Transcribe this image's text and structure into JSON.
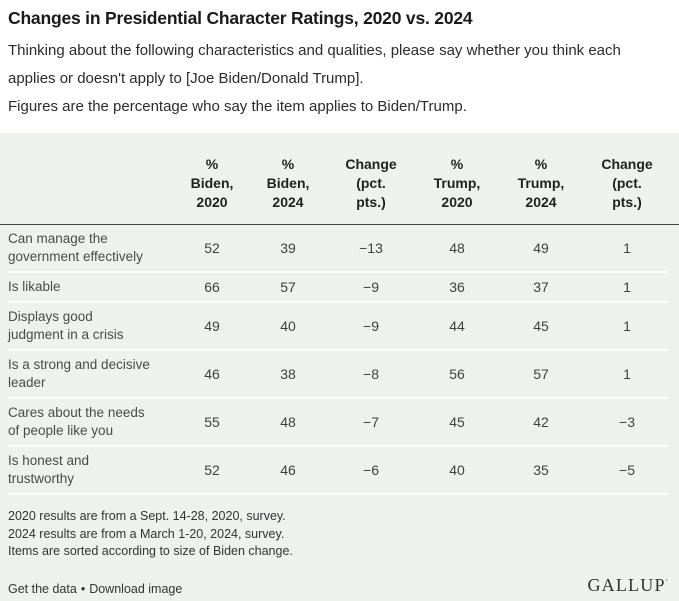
{
  "title": "Changes in Presidential Character Ratings, 2020 vs. 2024",
  "description": {
    "para1": "Thinking about the following characteristics and qualities, please say whether you think each applies or doesn't apply to [Joe Biden/Donald Trump].",
    "para2": "Figures are the percentage who say the item applies to Biden/Trump."
  },
  "table": {
    "headers": [
      "%\nBiden,\n2020",
      "%\nBiden,\n2024",
      "Change\n(pct.\npts.)",
      "%\nTrump,\n2020",
      "%\nTrump,\n2024",
      "Change\n(pct.\npts.)"
    ],
    "rows": [
      {
        "label": "Can manage the\ngovernment effectively",
        "biden2020": "52",
        "biden2024": "39",
        "biden_change": "−13",
        "trump2020": "48",
        "trump2024": "49",
        "trump_change": "1"
      },
      {
        "label": "Is likable",
        "biden2020": "66",
        "biden2024": "57",
        "biden_change": "−9",
        "trump2020": "36",
        "trump2024": "37",
        "trump_change": "1"
      },
      {
        "label": "Displays good\njudgment in a crisis",
        "biden2020": "49",
        "biden2024": "40",
        "biden_change": "−9",
        "trump2020": "44",
        "trump2024": "45",
        "trump_change": "1"
      },
      {
        "label": "Is a strong and decisive\nleader",
        "biden2020": "46",
        "biden2024": "38",
        "biden_change": "−8",
        "trump2020": "56",
        "trump2024": "57",
        "trump_change": "1"
      },
      {
        "label": "Cares about the needs\nof people like you",
        "biden2020": "55",
        "biden2024": "48",
        "biden_change": "−7",
        "trump2020": "45",
        "trump2024": "42",
        "trump_change": "−3"
      },
      {
        "label": "Is honest and\ntrustworthy",
        "biden2020": "52",
        "biden2024": "46",
        "biden_change": "−6",
        "trump2020": "40",
        "trump2024": "35",
        "trump_change": "−5"
      }
    ]
  },
  "chart_data": {
    "type": "table",
    "title": "Changes in Presidential Character Ratings, 2020 vs. 2024",
    "columns": [
      "% Biden, 2020",
      "% Biden, 2024",
      "Change (pct. pts.)",
      "% Trump, 2020",
      "% Trump, 2024",
      "Change (pct. pts.)"
    ],
    "categories": [
      "Can manage the government effectively",
      "Is likable",
      "Displays good judgment in a crisis",
      "Is a strong and decisive leader",
      "Cares about the needs of people like you",
      "Is honest and trustworthy"
    ],
    "series": [
      {
        "name": "% Biden, 2020",
        "values": [
          52,
          66,
          49,
          46,
          55,
          52
        ]
      },
      {
        "name": "% Biden, 2024",
        "values": [
          39,
          57,
          40,
          38,
          48,
          46
        ]
      },
      {
        "name": "Biden change (pct. pts.)",
        "values": [
          -13,
          -9,
          -9,
          -8,
          -7,
          -6
        ]
      },
      {
        "name": "% Trump, 2020",
        "values": [
          48,
          36,
          44,
          56,
          45,
          40
        ]
      },
      {
        "name": "% Trump, 2024",
        "values": [
          49,
          37,
          45,
          57,
          42,
          35
        ]
      },
      {
        "name": "Trump change (pct. pts.)",
        "values": [
          1,
          1,
          1,
          1,
          -3,
          -5
        ]
      }
    ],
    "layout_hints": "striped table on light green panel, dark rule under header, sorted by size of Biden change"
  },
  "footnotes": [
    "2020 results are from a Sept. 14-28, 2020, survey.",
    "2024 results are from a March 1-20, 2024, survey.",
    "Items are sorted according to size of Biden change."
  ],
  "footer": {
    "get_data_label": "Get the data",
    "separator": "•",
    "download_label": "Download image",
    "logo": "GALLUP",
    "logo_mark": "’"
  },
  "colors": {
    "panel_bg": "#edf3ec",
    "header_rule": "#474747",
    "row_separator": "#ffffff",
    "title_text": "#1a1a1a",
    "body_text": "#2b2b2b",
    "cell_text": "#3f3f3f"
  }
}
